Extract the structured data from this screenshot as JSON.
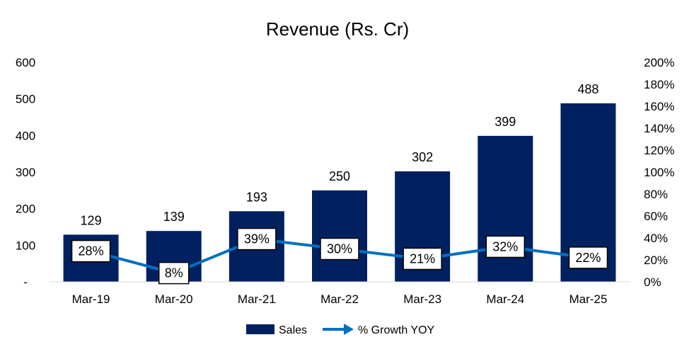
{
  "chart_data": {
    "type": "bar",
    "title": "Revenue (Rs. Cr)",
    "categories": [
      "Mar-19",
      "Mar-20",
      "Mar-21",
      "Mar-22",
      "Mar-23",
      "Mar-24",
      "Mar-25"
    ],
    "series": [
      {
        "name": "Sales",
        "type": "bar",
        "axis": "left",
        "color": "#002060",
        "values": [
          129,
          139,
          193,
          250,
          302,
          399,
          488
        ],
        "data_labels": [
          "129",
          "139",
          "193",
          "250",
          "302",
          "399",
          "488"
        ]
      },
      {
        "name": "% Growth YOY",
        "type": "line",
        "axis": "right",
        "color": "#0070C0",
        "values": [
          28,
          8,
          39,
          30,
          21,
          32,
          22
        ],
        "data_labels": [
          "28%",
          "8%",
          "39%",
          "30%",
          "21%",
          "32%",
          "22%"
        ]
      }
    ],
    "y_left": {
      "ylim": [
        0,
        600
      ],
      "ticks": [
        0,
        100,
        200,
        300,
        400,
        500,
        600
      ],
      "tick_labels": [
        "-",
        "100",
        "200",
        "300",
        "400",
        "500",
        "600"
      ]
    },
    "y_right": {
      "ylim": [
        0,
        200
      ],
      "ticks": [
        0,
        20,
        40,
        60,
        80,
        100,
        120,
        140,
        160,
        180,
        200
      ],
      "tick_labels": [
        "0%",
        "20%",
        "40%",
        "60%",
        "80%",
        "100%",
        "120%",
        "140%",
        "160%",
        "180%",
        "200%"
      ]
    },
    "grid": false,
    "legend": {
      "position": "bottom",
      "items": [
        {
          "label": "Sales",
          "marker": "bar",
          "color": "#002060"
        },
        {
          "label": "% Growth YOY",
          "marker": "line-arrow",
          "color": "#0070C0"
        }
      ]
    }
  }
}
